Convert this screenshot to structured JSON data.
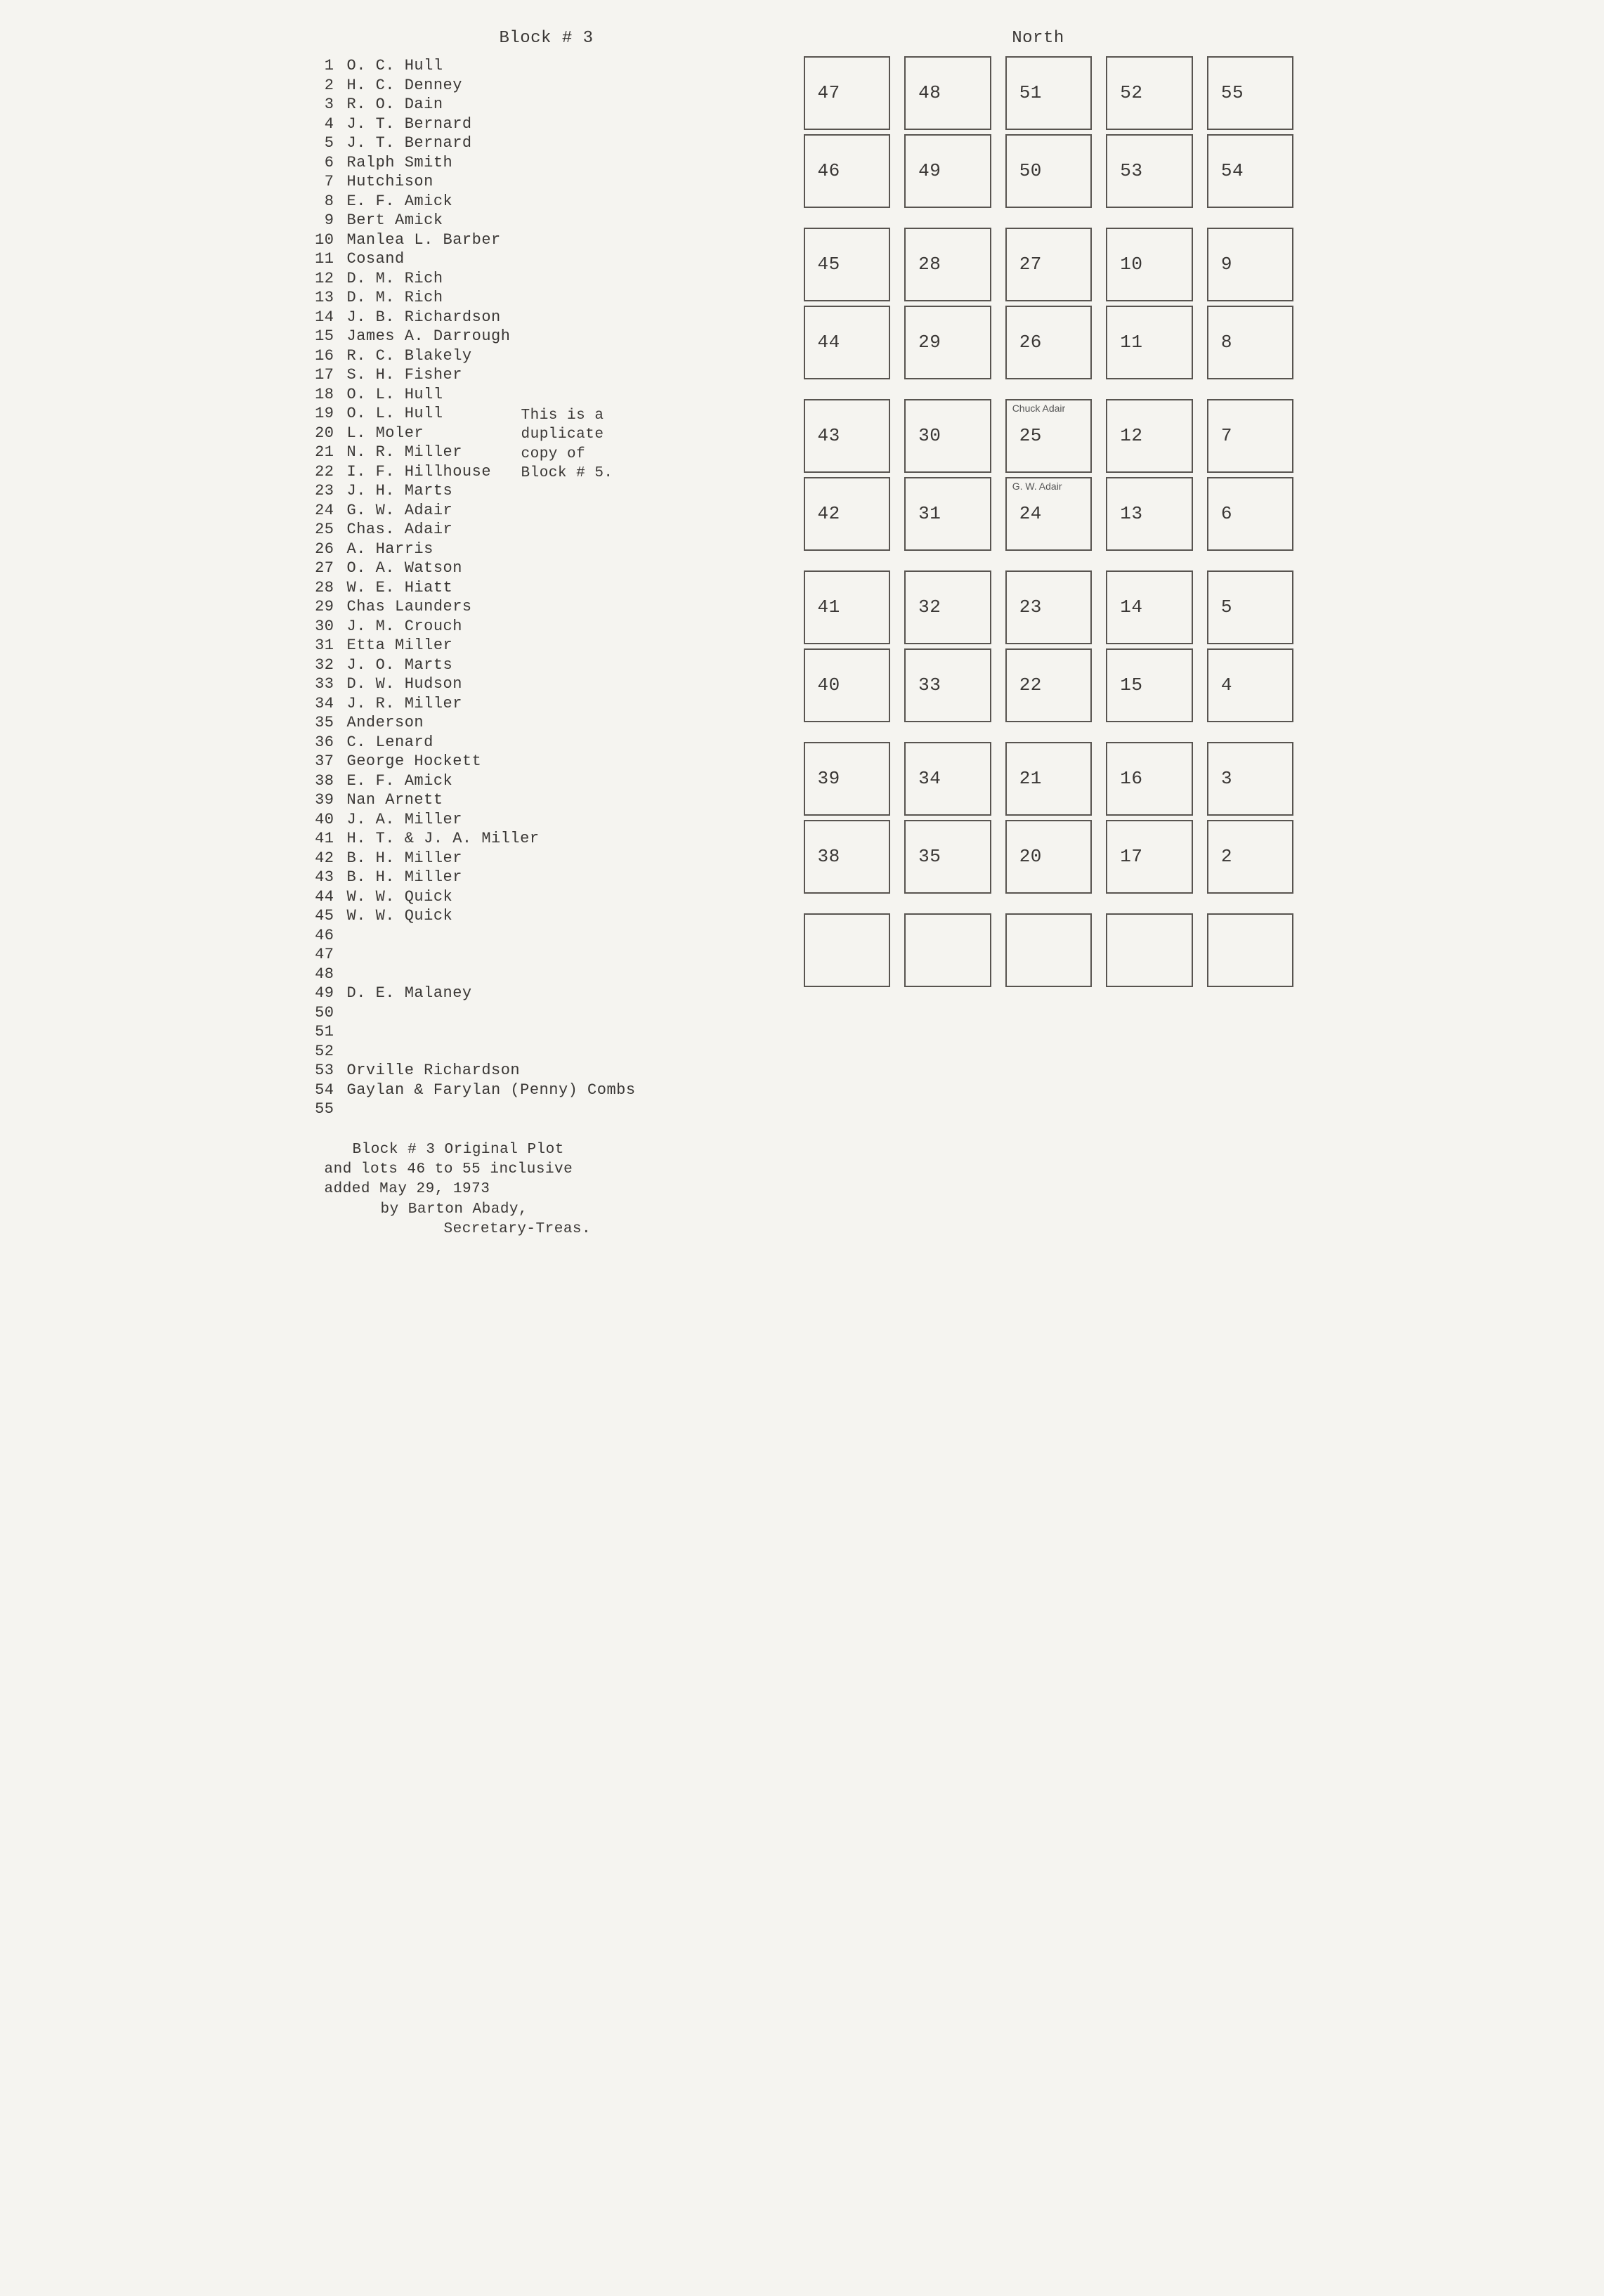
{
  "header": {
    "block_title": "Block # 3",
    "orientation": "North"
  },
  "side_note": {
    "line1": "This is a",
    "line2": "duplicate",
    "line3": "copy of",
    "line4": "Block # 5."
  },
  "names": [
    {
      "n": "1",
      "name": "O. C. Hull"
    },
    {
      "n": "2",
      "name": "H. C. Denney"
    },
    {
      "n": "3",
      "name": "R. O. Dain"
    },
    {
      "n": "4",
      "name": "J. T. Bernard"
    },
    {
      "n": "5",
      "name": "J. T. Bernard"
    },
    {
      "n": "6",
      "name": "Ralph Smith"
    },
    {
      "n": "7",
      "name": "Hutchison"
    },
    {
      "n": "8",
      "name": "E. F. Amick"
    },
    {
      "n": "9",
      "name": "Bert Amick"
    },
    {
      "n": "10",
      "name": "Manlea L. Barber"
    },
    {
      "n": "11",
      "name": "Cosand"
    },
    {
      "n": "12",
      "name": "D. M. Rich"
    },
    {
      "n": "13",
      "name": "D. M. Rich"
    },
    {
      "n": "14",
      "name": "J. B. Richardson"
    },
    {
      "n": "15",
      "name": "James A. Darrough"
    },
    {
      "n": "16",
      "name": "R. C. Blakely"
    },
    {
      "n": "17",
      "name": "S. H. Fisher"
    },
    {
      "n": "18",
      "name": "O. L. Hull"
    },
    {
      "n": "19",
      "name": "O. L. Hull"
    },
    {
      "n": "20",
      "name": "L. Moler"
    },
    {
      "n": "21",
      "name": "N. R. Miller"
    },
    {
      "n": "22",
      "name": "I. F. Hillhouse"
    },
    {
      "n": "23",
      "name": "J. H. Marts"
    },
    {
      "n": "24",
      "name": "G. W. Adair"
    },
    {
      "n": "25",
      "name": "Chas. Adair"
    },
    {
      "n": "26",
      "name": "A. Harris"
    },
    {
      "n": "27",
      "name": "O. A. Watson"
    },
    {
      "n": "28",
      "name": "W. E. Hiatt"
    },
    {
      "n": "29",
      "name": "Chas Launders"
    },
    {
      "n": "30",
      "name": "J. M. Crouch"
    },
    {
      "n": "31",
      "name": "Etta Miller"
    },
    {
      "n": "32",
      "name": "J. O. Marts"
    },
    {
      "n": "33",
      "name": "D. W. Hudson"
    },
    {
      "n": "34",
      "name": "J. R. Miller"
    },
    {
      "n": "35",
      "name": "Anderson"
    },
    {
      "n": "36",
      "name": "C. Lenard"
    },
    {
      "n": "37",
      "name": "George Hockett"
    },
    {
      "n": "38",
      "name": "E. F. Amick"
    },
    {
      "n": "39",
      "name": "Nan Arnett"
    },
    {
      "n": "40",
      "name": "J. A. Miller"
    },
    {
      "n": "41",
      "name": "H. T. & J. A. Miller"
    },
    {
      "n": "42",
      "name": "B. H. Miller"
    },
    {
      "n": "43",
      "name": "B. H. Miller"
    },
    {
      "n": "44",
      "name": "W. W. Quick"
    },
    {
      "n": "45",
      "name": "W. W. Quick"
    },
    {
      "n": "46",
      "name": ""
    },
    {
      "n": "47",
      "name": ""
    },
    {
      "n": "48",
      "name": ""
    },
    {
      "n": "49",
      "name": "D. E. Malaney"
    },
    {
      "n": "50",
      "name": ""
    },
    {
      "n": "51",
      "name": ""
    },
    {
      "n": "52",
      "name": ""
    },
    {
      "n": "53",
      "name": "Orville Richardson"
    },
    {
      "n": "54",
      "name": "Gaylan & Farylan (Penny) Combs"
    },
    {
      "n": "55",
      "name": ""
    }
  ],
  "grid_groups": [
    {
      "rows": [
        [
          {
            "label": "47"
          },
          {
            "label": "48"
          },
          {
            "label": "51"
          },
          {
            "label": "52"
          },
          {
            "label": "55"
          }
        ],
        [
          {
            "label": "46"
          },
          {
            "label": "49"
          },
          {
            "label": "50"
          },
          {
            "label": "53"
          },
          {
            "label": "54"
          }
        ]
      ]
    },
    {
      "rows": [
        [
          {
            "label": "45"
          },
          {
            "label": "28"
          },
          {
            "label": "27"
          },
          {
            "label": "10"
          },
          {
            "label": "9"
          }
        ],
        [
          {
            "label": "44"
          },
          {
            "label": "29"
          },
          {
            "label": "26"
          },
          {
            "label": "11"
          },
          {
            "label": "8"
          }
        ]
      ]
    },
    {
      "rows": [
        [
          {
            "label": "43"
          },
          {
            "label": "30"
          },
          {
            "label": "25",
            "annot": "Chuck Adair"
          },
          {
            "label": "12"
          },
          {
            "label": "7"
          }
        ],
        [
          {
            "label": "42"
          },
          {
            "label": "31"
          },
          {
            "label": "24",
            "annot": "G. W. Adair"
          },
          {
            "label": "13"
          },
          {
            "label": "6"
          }
        ]
      ]
    },
    {
      "rows": [
        [
          {
            "label": "41"
          },
          {
            "label": "32"
          },
          {
            "label": "23"
          },
          {
            "label": "14"
          },
          {
            "label": "5"
          }
        ],
        [
          {
            "label": "40"
          },
          {
            "label": "33"
          },
          {
            "label": "22"
          },
          {
            "label": "15"
          },
          {
            "label": "4"
          }
        ]
      ]
    },
    {
      "rows": [
        [
          {
            "label": "39"
          },
          {
            "label": "34"
          },
          {
            "label": "21"
          },
          {
            "label": "16"
          },
          {
            "label": "3"
          }
        ],
        [
          {
            "label": "38"
          },
          {
            "label": "35"
          },
          {
            "label": "20"
          },
          {
            "label": "17"
          },
          {
            "label": "2"
          }
        ]
      ]
    },
    {
      "rows": [
        [
          {
            "label": ""
          },
          {
            "label": ""
          },
          {
            "label": ""
          },
          {
            "label": ""
          },
          {
            "label": ""
          }
        ]
      ]
    }
  ],
  "footer": {
    "line1": "Block # 3 Original Plot",
    "line2": "and lots 46 to 55 inclusive",
    "line3": "added May 29, 1973",
    "line4": "by Barton Abady,",
    "line5": "Secretary-Treas."
  }
}
